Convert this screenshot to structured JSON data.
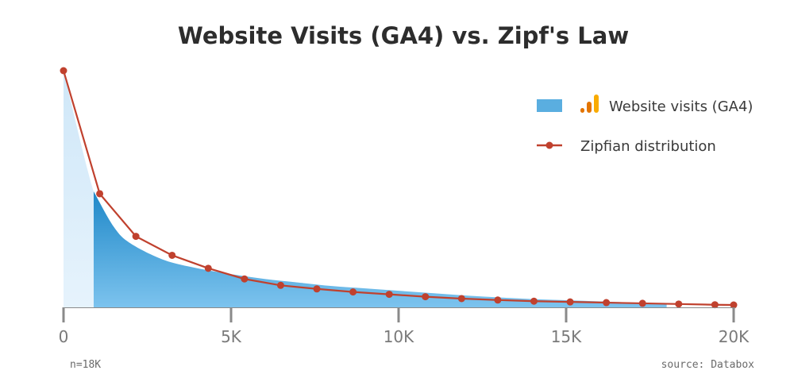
{
  "colors": {
    "visits_fill": "#5aaee0",
    "visits_fill_dark": "#2f93d0",
    "visits_ghost": "#dbeefa",
    "zipf_line": "#c0412e",
    "axis": "#8a8a8a",
    "ga4_orange": "#f9ab00",
    "ga4_dark": "#e37400"
  },
  "legend": {
    "visits_label": "Website visits (GA4)",
    "zipf_label": "Zipfian distribution",
    "visits_icon": "google-analytics-icon"
  },
  "notes": {
    "sample": "n=18K",
    "source": "source: Databox"
  },
  "chart_data": {
    "type": "line",
    "title": "Website Visits (GA4) vs. Zipf's Law",
    "xlabel": "",
    "ylabel": "",
    "xlim": [
      0,
      20000
    ],
    "ylim": [
      0,
      1
    ],
    "x_ticks": [
      0,
      5000,
      10000,
      15000,
      20000
    ],
    "x_tick_labels": [
      "0",
      "5K",
      "10K",
      "15K",
      "20K"
    ],
    "grid": false,
    "legend_position": "top-right",
    "series": [
      {
        "name": "Website visits (GA4)",
        "kind": "area",
        "x": [
          0,
          900,
          1500,
          2000,
          3000,
          4000,
          5000,
          6000,
          7000,
          8000,
          9000,
          10000,
          11000,
          12000,
          13000,
          14000,
          15000,
          16000,
          17000,
          18000
        ],
        "values": [
          1.0,
          0.49,
          0.34,
          0.27,
          0.2,
          0.165,
          0.14,
          0.12,
          0.105,
          0.09,
          0.08,
          0.07,
          0.06,
          0.05,
          0.042,
          0.035,
          0.03,
          0.025,
          0.02,
          0.016
        ]
      },
      {
        "name": "Zipfian distribution",
        "kind": "line",
        "x": [
          0,
          1080,
          2160,
          3240,
          4320,
          5400,
          6480,
          7560,
          8640,
          9720,
          10800,
          11880,
          12960,
          14040,
          15120,
          16200,
          17280,
          18360,
          19440,
          20000
        ],
        "values": [
          1.0,
          0.48,
          0.3,
          0.22,
          0.165,
          0.12,
          0.093,
          0.078,
          0.065,
          0.055,
          0.045,
          0.037,
          0.031,
          0.026,
          0.023,
          0.02,
          0.017,
          0.014,
          0.011,
          0.01
        ]
      }
    ]
  }
}
